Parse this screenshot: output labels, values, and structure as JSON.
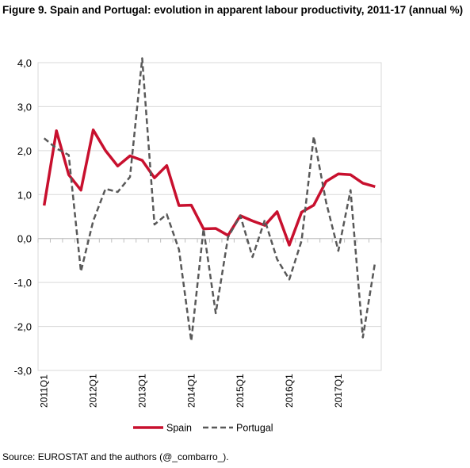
{
  "figure": {
    "title": "Figure 9. Spain and Portugal: evolution in apparent labour productivity, 2011-17 (annual %)",
    "source": "Source: EUROSTAT and the authors (@_combarro_)."
  },
  "chart_data": {
    "type": "line",
    "title": "",
    "xlabel": "",
    "ylabel": "",
    "ylim": [
      -3.0,
      4.0
    ],
    "yticks": [
      -3.0,
      -2.0,
      -1.0,
      0.0,
      1.0,
      2.0,
      3.0,
      4.0
    ],
    "ytick_labels": [
      "-3,0",
      "-2,0",
      "-1,0",
      "0,0",
      "1,0",
      "2,0",
      "3,0",
      "4,0"
    ],
    "x": [
      "2011Q1",
      "2011Q2",
      "2011Q3",
      "2011Q4",
      "2012Q1",
      "2012Q2",
      "2012Q3",
      "2012Q4",
      "2013Q1",
      "2013Q2",
      "2013Q3",
      "2013Q4",
      "2014Q1",
      "2014Q2",
      "2014Q3",
      "2014Q4",
      "2015Q1",
      "2015Q2",
      "2015Q3",
      "2015Q4",
      "2016Q1",
      "2016Q2",
      "2016Q3",
      "2016Q4",
      "2017Q1",
      "2017Q2",
      "2017Q3",
      "2017Q4"
    ],
    "xtick_labels": [
      "2011Q1",
      "2012Q1",
      "2013Q1",
      "2014Q1",
      "2015Q1",
      "2016Q1",
      "2017Q1"
    ],
    "grid": "horizontal",
    "legend": "bottom-center",
    "series": [
      {
        "name": "Spain",
        "color": "#c8102e",
        "style": "solid",
        "values": [
          0.75,
          2.45,
          1.45,
          1.1,
          2.47,
          2.0,
          1.65,
          1.88,
          1.78,
          1.38,
          1.66,
          0.75,
          0.76,
          0.22,
          0.23,
          0.07,
          0.52,
          0.4,
          0.3,
          0.61,
          -0.15,
          0.6,
          0.76,
          1.3,
          1.47,
          1.45,
          1.26,
          1.18
        ]
      },
      {
        "name": "Portugal",
        "color": "#595959",
        "style": "dashed",
        "values": [
          2.28,
          2.05,
          1.9,
          -0.75,
          0.4,
          1.13,
          1.06,
          1.4,
          4.1,
          0.32,
          0.55,
          -0.25,
          -2.33,
          0.22,
          -1.7,
          0.03,
          0.52,
          -0.42,
          0.42,
          -0.47,
          -0.93,
          -0.05,
          2.32,
          0.83,
          -0.28,
          1.1,
          -2.25,
          -0.53
        ]
      }
    ]
  }
}
